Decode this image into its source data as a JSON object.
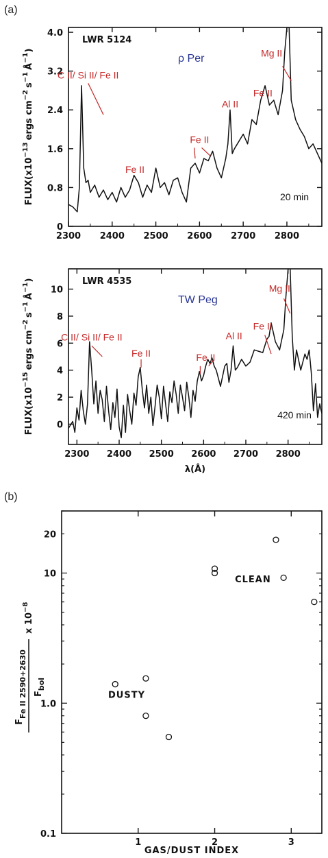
{
  "colors": {
    "annotation": "#c62828",
    "star": "#283593",
    "ink": "#111111"
  },
  "panel_labels": {
    "a": "(a)",
    "b": "(b)"
  },
  "chart_data": [
    {
      "type": "line",
      "panel": "a-top",
      "id_label": "LWR 5124",
      "star_label": "ρ Per",
      "exposure": "20 min",
      "xlim": [
        2300,
        2880
      ],
      "xticks": [
        2300,
        2400,
        2500,
        2600,
        2700,
        2800
      ],
      "ylim": [
        0,
        4.1
      ],
      "yticks": [
        "0",
        "0.8",
        "1.6",
        "2.4",
        "3.2",
        "4.0"
      ],
      "ytick_values": [
        0,
        0.8,
        1.6,
        2.4,
        3.2,
        4.0
      ],
      "ylabel_parts": {
        "main": "FLUX(x10",
        "exp1": "−13",
        "units": "ergs cm",
        "exp2": "−2",
        "s": "s",
        "exp3": "−1",
        "A": "Å",
        "exp4": "−1",
        "close": ")"
      },
      "annotations": [
        {
          "text": "C II/ Si II/ Fe II",
          "x": 2340,
          "y": 2.3,
          "tx": 2345,
          "ty": 3.05,
          "lines": [
            [
              2345,
              2.95,
              2380,
              2.3
            ]
          ]
        },
        {
          "text": "Fe II",
          "x": 2452,
          "y": 1.05,
          "tx": 2452,
          "ty": 1.1,
          "lines": []
        },
        {
          "text": "Fe II",
          "x": 2600,
          "y": 1.3,
          "tx": 2600,
          "ty": 1.72,
          "lines": [
            [
              2588,
              1.62,
              2590,
              1.4
            ],
            [
              2605,
              1.62,
              2625,
              1.45
            ]
          ]
        },
        {
          "text": "Al II",
          "x": 2670,
          "y": 2.35,
          "tx": 2670,
          "ty": 2.45,
          "lines": []
        },
        {
          "text": "Fe II",
          "x": 2745,
          "y": 2.6,
          "tx": 2745,
          "ty": 2.68,
          "lines": []
        },
        {
          "text": "Mg II",
          "x": 2800,
          "y": 3.3,
          "tx": 2765,
          "ty": 3.5,
          "lines": [
            [
              2790,
              3.3,
              2810,
              3.0
            ]
          ]
        }
      ],
      "series": [
        {
          "x": [
            2300,
            2310,
            2320,
            2325,
            2330,
            2335,
            2340,
            2345,
            2350,
            2360,
            2370,
            2380,
            2390,
            2400,
            2410,
            2420,
            2430,
            2440,
            2450,
            2460,
            2470,
            2480,
            2490,
            2500,
            2510,
            2520,
            2530,
            2540,
            2550,
            2560,
            2570,
            2580,
            2590,
            2600,
            2610,
            2620,
            2630,
            2640,
            2650,
            2660,
            2665,
            2670,
            2675,
            2680,
            2690,
            2700,
            2710,
            2720,
            2730,
            2740,
            2750,
            2760,
            2770,
            2780,
            2790,
            2795,
            2800,
            2805,
            2810,
            2820,
            2830,
            2840,
            2850,
            2860,
            2870,
            2880
          ],
          "y": [
            0.45,
            0.4,
            0.3,
            0.8,
            2.9,
            1.2,
            0.9,
            0.95,
            0.7,
            0.85,
            0.6,
            0.75,
            0.55,
            0.7,
            0.5,
            0.8,
            0.6,
            0.75,
            1.05,
            0.9,
            0.6,
            0.85,
            0.7,
            1.2,
            0.8,
            0.9,
            0.65,
            0.95,
            1.0,
            0.7,
            0.5,
            1.2,
            1.3,
            1.1,
            1.4,
            1.35,
            1.55,
            1.2,
            1.0,
            1.4,
            1.7,
            2.4,
            1.5,
            1.6,
            1.75,
            1.9,
            1.7,
            2.2,
            2.1,
            2.6,
            2.9,
            2.5,
            2.6,
            2.3,
            2.8,
            3.6,
            4.1,
            4.1,
            2.6,
            2.2,
            2.0,
            1.85,
            1.6,
            1.7,
            1.5,
            1.3
          ]
        }
      ]
    },
    {
      "type": "line",
      "panel": "a-bottom",
      "id_label": "LWR 4535",
      "star_label": "TW Peg",
      "exposure": "420 min",
      "xlim": [
        2280,
        2880
      ],
      "xticks": [
        2300,
        2400,
        2500,
        2600,
        2700,
        2800
      ],
      "ylim": [
        -1.5,
        11.5
      ],
      "yticks": [
        "0",
        "2",
        "4",
        "6",
        "8",
        "10"
      ],
      "ytick_values": [
        0,
        2,
        4,
        6,
        8,
        10
      ],
      "xlabel": "λ(Å)",
      "ylabel_parts": {
        "main": "FLUX(x10",
        "exp1": "−15",
        "units": "ergs cm",
        "exp2": "−2",
        "s": "s",
        "exp3": "−1",
        "A": "Å",
        "exp4": "−1",
        "close": ")"
      },
      "annotations": [
        {
          "text": "C II/ Si II/ Fe II",
          "x": 2330,
          "y": 5,
          "tx": 2335,
          "ty": 6.2,
          "lines": [
            [
              2335,
              5.8,
              2360,
              5.0
            ]
          ]
        },
        {
          "text": "Fe II",
          "x": 2452,
          "y": 4.4,
          "tx": 2452,
          "ty": 5.0,
          "lines": [
            [
              2452,
              4.8,
              2452,
              4.2
            ]
          ]
        },
        {
          "text": "Fe II",
          "x": 2600,
          "y": 3.6,
          "tx": 2605,
          "ty": 4.7,
          "lines": [
            [
              2592,
              4.3,
              2592,
              3.7
            ],
            [
              2612,
              4.3,
              2625,
              4.8
            ]
          ]
        },
        {
          "text": "Al II",
          "x": 2672,
          "y": 5.8,
          "tx": 2672,
          "ty": 6.3,
          "lines": []
        },
        {
          "text": "Fe II",
          "x": 2740,
          "y": 6.9,
          "tx": 2740,
          "ty": 7.0,
          "lines": [
            [
              2745,
              6.6,
              2760,
              5.2
            ]
          ]
        },
        {
          "text": "Mg II",
          "x": 2790,
          "y": 9.5,
          "tx": 2780,
          "ty": 9.8,
          "lines": [
            [
              2790,
              9.3,
              2805,
              8.2
            ]
          ]
        }
      ],
      "series": [
        {
          "x": [
            2280,
            2290,
            2295,
            2300,
            2305,
            2310,
            2315,
            2320,
            2325,
            2330,
            2335,
            2340,
            2345,
            2350,
            2355,
            2360,
            2365,
            2370,
            2375,
            2380,
            2385,
            2390,
            2395,
            2400,
            2405,
            2410,
            2415,
            2420,
            2425,
            2430,
            2435,
            2440,
            2445,
            2450,
            2455,
            2460,
            2465,
            2470,
            2475,
            2480,
            2485,
            2490,
            2495,
            2500,
            2505,
            2510,
            2515,
            2520,
            2525,
            2530,
            2535,
            2540,
            2545,
            2550,
            2555,
            2560,
            2565,
            2570,
            2575,
            2580,
            2585,
            2590,
            2595,
            2600,
            2605,
            2610,
            2615,
            2620,
            2625,
            2630,
            2640,
            2650,
            2655,
            2660,
            2665,
            2670,
            2675,
            2680,
            2690,
            2700,
            2710,
            2720,
            2730,
            2740,
            2750,
            2755,
            2760,
            2770,
            2780,
            2790,
            2795,
            2800,
            2805,
            2810,
            2815,
            2820,
            2830,
            2840,
            2845,
            2850,
            2855,
            2860,
            2865,
            2870,
            2875,
            2880
          ],
          "y": [
            -0.3,
            0.2,
            -0.6,
            1.2,
            0.3,
            2.5,
            1.0,
            0.0,
            1.5,
            6.1,
            4.0,
            1.5,
            3.2,
            0.8,
            2.5,
            1.8,
            0.2,
            2.8,
            1.0,
            -0.4,
            1.6,
            0.5,
            2.6,
            -0.2,
            -1.0,
            1.4,
            -0.6,
            2.2,
            1.0,
            0.0,
            2.3,
            1.4,
            3.5,
            4.2,
            2.5,
            1.2,
            2.9,
            0.8,
            2.0,
            -0.1,
            1.3,
            2.9,
            2.0,
            0.4,
            2.8,
            1.5,
            0.2,
            2.4,
            1.6,
            3.2,
            2.2,
            0.8,
            2.9,
            2.0,
            1.0,
            3.1,
            2.0,
            0.5,
            2.5,
            1.7,
            3.2,
            3.9,
            3.2,
            3.6,
            4.3,
            4.8,
            4.5,
            4.9,
            4.3,
            4.0,
            2.8,
            4.3,
            4.5,
            3.1,
            4.0,
            5.8,
            4.0,
            4.2,
            4.8,
            4.3,
            4.6,
            5.5,
            5.4,
            5.3,
            6.3,
            6.5,
            7.5,
            6.1,
            5.5,
            7.0,
            9.5,
            11.5,
            11.5,
            6.5,
            4.0,
            5.5,
            4.0,
            5.2,
            4.8,
            5.5,
            3.8,
            1.0,
            3.0,
            0.5,
            1.5,
            0.8
          ]
        }
      ]
    },
    {
      "type": "scatter",
      "panel": "b",
      "xlabel": "GAS/DUST INDEX",
      "ylabel": "F Fe II 2590+2630 / F bol x 10^-8",
      "ylabel_parts": {
        "num_F": "F",
        "num_sub": "Fe II 2590+2630",
        "den_F": "F",
        "den_sub": "bol",
        "mult": "x 10",
        "exp": "−8"
      },
      "yscale": "log",
      "xlim": [
        0,
        3.4
      ],
      "ylim": [
        0.1,
        30
      ],
      "xticks": [
        "1",
        "2",
        "3"
      ],
      "xtick_values": [
        1,
        2,
        3
      ],
      "yticks": [
        "0.1",
        "1.0",
        "10",
        "20"
      ],
      "ytick_values": [
        0.1,
        1.0,
        10,
        20
      ],
      "groups": [
        {
          "label": "DUSTY",
          "x": 0.85,
          "y": 1.1
        },
        {
          "label": "CLEAN",
          "x": 2.5,
          "y": 8.5
        }
      ],
      "points": [
        {
          "x": 0.7,
          "y": 1.4
        },
        {
          "x": 1.1,
          "y": 1.55
        },
        {
          "x": 1.1,
          "y": 0.8
        },
        {
          "x": 1.4,
          "y": 0.55
        },
        {
          "x": 2.0,
          "y": 10.0
        },
        {
          "x": 2.0,
          "y": 10.8
        },
        {
          "x": 2.8,
          "y": 18.0
        },
        {
          "x": 2.9,
          "y": 9.2
        },
        {
          "x": 3.3,
          "y": 6.0
        }
      ]
    }
  ]
}
